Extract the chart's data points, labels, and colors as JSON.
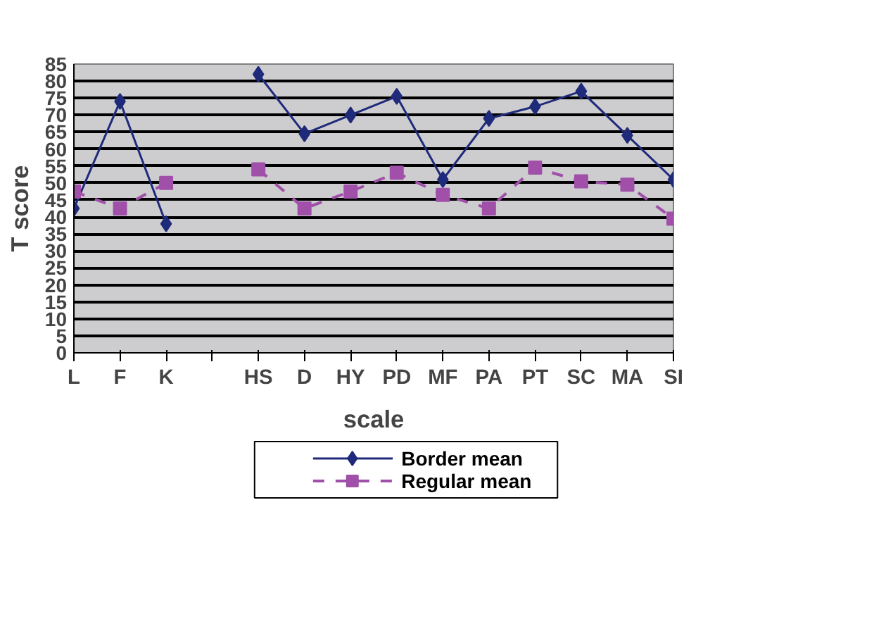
{
  "chart_data": {
    "type": "line",
    "xlabel": "scale",
    "ylabel": "T score",
    "categories": [
      "L",
      "F",
      "K",
      null,
      "HS",
      "D",
      "HY",
      "PD",
      "MF",
      "PA",
      "PT",
      "SC",
      "MA",
      "SI"
    ],
    "series": [
      {
        "name": "Border mean",
        "color": "#1f2a7a",
        "marker": "diamond",
        "line_style": "solid",
        "values": [
          42.5,
          74,
          38,
          null,
          82,
          64.5,
          70,
          75.5,
          51,
          69,
          72.5,
          77,
          64,
          51
        ]
      },
      {
        "name": "Regular mean",
        "color": "#a050a8",
        "marker": "square",
        "line_style": "dashed",
        "values": [
          47.5,
          42.5,
          50,
          null,
          54,
          42.5,
          47.5,
          53,
          46.5,
          42.5,
          54.5,
          50.5,
          49.5,
          39.5
        ]
      }
    ],
    "ylim": [
      0,
      85
    ],
    "yticks": [
      0,
      5,
      10,
      15,
      20,
      25,
      30,
      35,
      40,
      45,
      50,
      55,
      60,
      65,
      70,
      75,
      80,
      85
    ],
    "grid": "y",
    "legend": "bottom"
  }
}
